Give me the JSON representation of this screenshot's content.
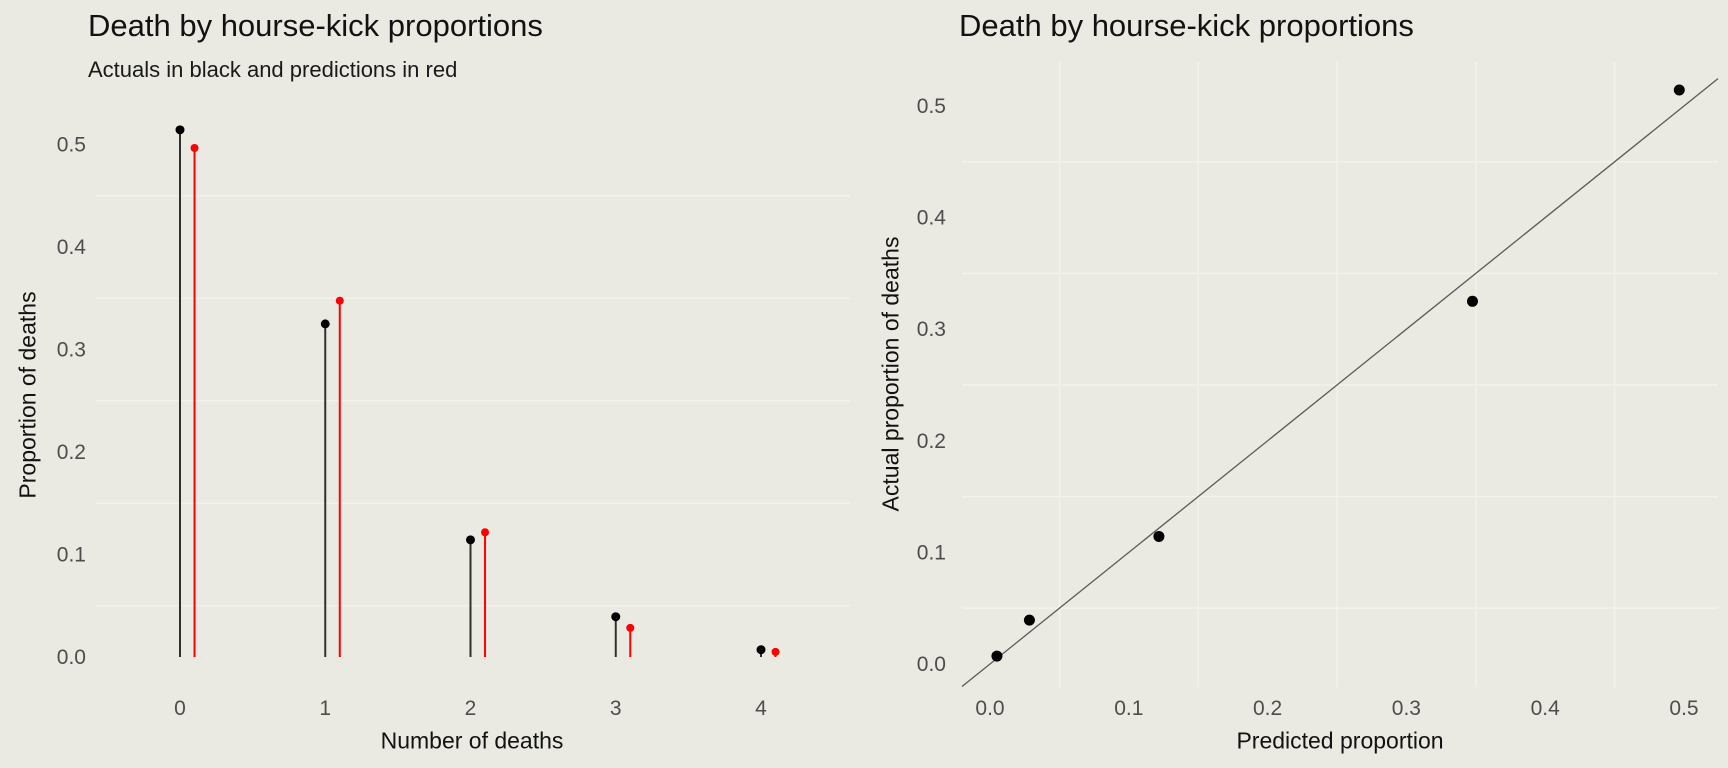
{
  "style": {
    "background": "#EAEAE2",
    "gridline_color": "#F2F2EA",
    "tick_label_color": "#4D4D4D",
    "title_color": "#121212",
    "actual_color": "#000000",
    "actual_stem_color": "#303030",
    "predicted_color": "#FF0000",
    "reference_line_color": "#5A5A5A"
  },
  "chart_data": [
    {
      "type": "lollipop",
      "title": "Death by hourse-kick proportions",
      "subtitle": "Actuals in black and predictions in red",
      "xlabel": "Number of deaths",
      "ylabel": "Proportion of deaths",
      "categories": [
        0,
        1,
        2,
        3,
        4
      ],
      "series": [
        {
          "name": "actual",
          "color": "#000000",
          "values": [
            0.5143,
            0.325,
            0.1143,
            0.0393,
            0.0071
          ]
        },
        {
          "name": "predicted",
          "color": "#FF0000",
          "values": [
            0.4966,
            0.3476,
            0.1217,
            0.0284,
            0.005
          ]
        }
      ],
      "predicted_x_offset": 0.1,
      "x_tick_labels": [
        "0",
        "1",
        "2",
        "3",
        "4"
      ],
      "y_tick_labels": [
        "0.0",
        "0.1",
        "0.2",
        "0.3",
        "0.4",
        "0.5"
      ],
      "xlim": [
        -0.6,
        4.6
      ],
      "ylim": [
        -0.028,
        0.54
      ],
      "grid": "minor horizontal gridlines only",
      "legend": "none"
    },
    {
      "type": "scatter",
      "title": "Death by hourse-kick proportions",
      "xlabel": "Predicted proportion",
      "ylabel": "Actual proportion of deaths",
      "x": [
        0.005,
        0.0284,
        0.1217,
        0.3476,
        0.4966
      ],
      "y": [
        0.0071,
        0.0393,
        0.1143,
        0.325,
        0.5143
      ],
      "reference_line": "y = x",
      "x_tick_labels": [
        "0.0",
        "0.1",
        "0.2",
        "0.3",
        "0.4",
        "0.5"
      ],
      "y_tick_labels": [
        "0.0",
        "0.1",
        "0.2",
        "0.3",
        "0.4",
        "0.5"
      ],
      "xlim": [
        -0.02,
        0.525
      ],
      "ylim": [
        -0.021,
        0.54
      ],
      "grid": "minor gridlines both axes",
      "legend": "none"
    }
  ]
}
